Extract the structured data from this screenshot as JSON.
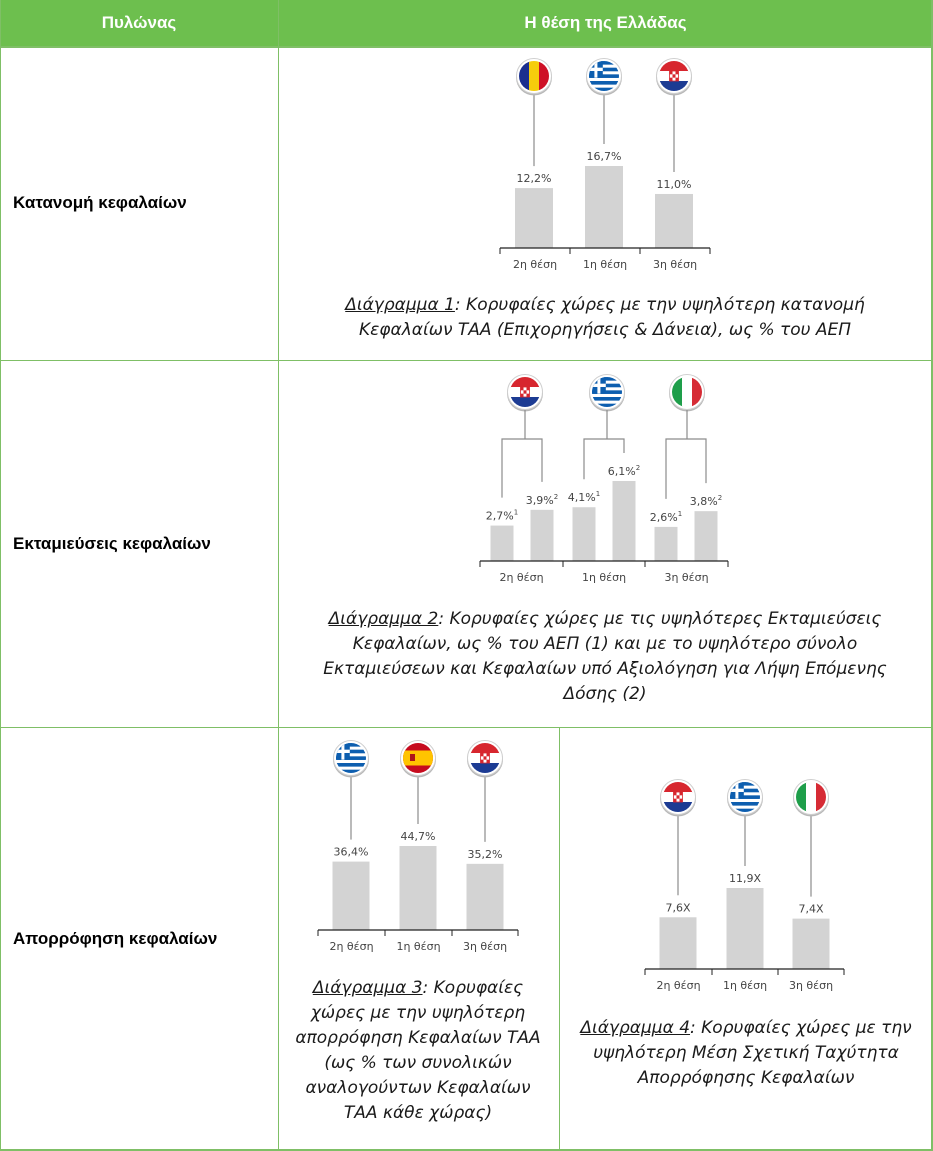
{
  "header": {
    "col1": "Πυλώνας",
    "col2": "Η θέση της Ελλάδας"
  },
  "colors": {
    "header_bg": "#6dbf4e",
    "grid": "#7fbf66",
    "bar": "#d3d3d3",
    "axis": "#222222"
  },
  "rows": [
    {
      "pillar": "Κατανομή κεφαλαίων"
    },
    {
      "pillar": "Εκταμιεύσεις κεφαλαίων"
    },
    {
      "pillar": "Απορρόφηση κεφαλαίων"
    }
  ],
  "captions": [
    {
      "label": "Διάγραμμα 1",
      "text": ": Κορυφαίες χώρες με την υψηλότερη κατανομή Κεφαλαίων ΤΑΑ (Επιχορηγήσεις & Δάνεια), ως % του ΑΕΠ"
    },
    {
      "label": "Διάγραμμα 2",
      "text": ": Κορυφαίες χώρες με τις υψηλότερες Εκταμιεύσεις Κεφαλαίων, ως % του ΑΕΠ (1) και  με το υψηλότερο σύνολο Εκταμιεύσεων και Κεφαλαίων υπό Αξιολόγηση για Λήψη Επόμενης Δόσης (2)"
    },
    {
      "label": "Διάγραμμα 3",
      "text": ": Κορυφαίες χώρες με την υψηλότερη απορρόφηση Κεφαλαίων ΤΑΑ (ως % των συνολικών αναλογούντων Κεφαλαίων ΤΑΑ κάθε χώρας)"
    },
    {
      "label": "Διάγραμμα 4",
      "text": ": Κορυφαίες χώρες με την υψηλότερη Μέση Σχετική Ταχύτητα Απορρόφησης Κεφαλαίων"
    }
  ],
  "chart_data": [
    {
      "type": "bar",
      "categories": [
        "2η θέση",
        "1η θέση",
        "3η θέση"
      ],
      "countries": [
        "romania-flag-icon",
        "greece-flag-icon",
        "croatia-flag-icon"
      ],
      "values": [
        12.2,
        16.7,
        11.0
      ],
      "labels": [
        "12,2%",
        "16,7%",
        "11,0%"
      ],
      "title": "",
      "xlabel": "",
      "ylabel": "",
      "ylim": [
        0,
        16.7
      ]
    },
    {
      "type": "bar",
      "categories": [
        "2η θέση",
        "1η θέση",
        "3η θέση"
      ],
      "countries": [
        "croatia-flag-icon",
        "greece-flag-icon",
        "italy-flag-icon"
      ],
      "series": [
        {
          "values": [
            2.7,
            4.1,
            2.6
          ],
          "labels": [
            "2,7%",
            "4,1%",
            "2,6%"
          ],
          "sup": "1"
        },
        {
          "values": [
            3.9,
            6.1,
            3.8
          ],
          "labels": [
            "3,9%",
            "6,1%",
            "3,8%"
          ],
          "sup": "2"
        }
      ],
      "title": "",
      "xlabel": "",
      "ylabel": "",
      "ylim": [
        0,
        6.1
      ]
    },
    {
      "type": "bar",
      "categories": [
        "2η θέση",
        "1η θέση",
        "3η θέση"
      ],
      "countries": [
        "greece-flag-icon",
        "spain-flag-icon",
        "croatia-flag-icon"
      ],
      "values": [
        36.4,
        44.7,
        35.2
      ],
      "labels": [
        "36,4%",
        "44,7%",
        "35,2%"
      ],
      "title": "",
      "xlabel": "",
      "ylabel": "",
      "ylim": [
        0,
        44.7
      ]
    },
    {
      "type": "bar",
      "categories": [
        "2η θέση",
        "1η θέση",
        "3η θέση"
      ],
      "countries": [
        "croatia-flag-icon",
        "greece-flag-icon",
        "italy-flag-icon"
      ],
      "values": [
        7.6,
        11.9,
        7.4
      ],
      "labels": [
        "7,6X",
        "11,9X",
        "7,4X"
      ],
      "title": "",
      "xlabel": "",
      "ylabel": "",
      "ylim": [
        0,
        11.9
      ]
    }
  ]
}
